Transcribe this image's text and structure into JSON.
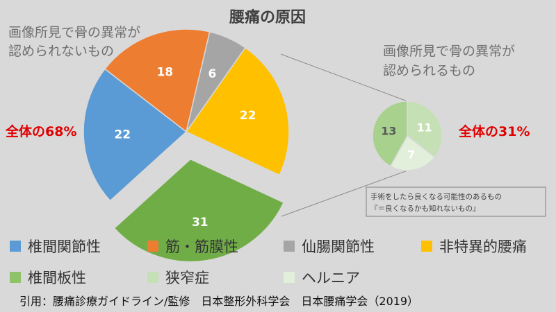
{
  "title": "腰痛の原因",
  "left_group": {
    "caption_lines": [
      "画像所見で骨の異常が",
      "認められないもの"
    ],
    "percent_label": "全体の68%"
  },
  "right_group": {
    "caption_lines": [
      "画像所見で骨の異常が",
      "認められるもの"
    ],
    "percent_label": "全体の31%"
  },
  "note": {
    "lines": [
      "手術をしたら良くなる可能性のあるもの",
      "『＝良くなるかも知れないもの』"
    ]
  },
  "legend": [
    {
      "label": "椎間関節性",
      "color": "#5b9bd5"
    },
    {
      "label": "筋・筋膜性",
      "color": "#ed7d31"
    },
    {
      "label": "仙腸関節性",
      "color": "#a5a5a5"
    },
    {
      "label": "非特異的腰痛",
      "color": "#ffc000"
    },
    {
      "label": "椎間板性",
      "color": "#8fc36a"
    },
    {
      "label": "狭窄症",
      "color": "#c5e0b4"
    },
    {
      "label": "ヘルニア",
      "color": "#e2efda"
    }
  ],
  "source": "引用：腰痛診療ガイドライン/監修　日本整形外科学会　日本腰痛学会（2019）",
  "chart_data": [
    {
      "type": "pie",
      "title": "腰痛の原因",
      "slices": [
        {
          "label": "非特異的腰痛",
          "value": 22,
          "color": "#ffc000",
          "label_color": "#ffffff"
        },
        {
          "label": "椎間板性",
          "value": 31,
          "color": "#70ad47",
          "label_color": "#ffffff",
          "exploded": true
        },
        {
          "label": "椎間関節性",
          "value": 22,
          "color": "#5b9bd5",
          "label_color": "#ffffff"
        },
        {
          "label": "筋・筋膜性",
          "value": 18,
          "color": "#ed7d31",
          "label_color": "#ffffff"
        },
        {
          "label": "仙腸関節性",
          "value": 6,
          "color": "#a5a5a5",
          "label_color": "#ffffff"
        }
      ]
    },
    {
      "type": "pie",
      "title": "",
      "slices": [
        {
          "label": "狭窄症",
          "value": 11,
          "color": "#c5e0b4",
          "label_color": "#ffffff"
        },
        {
          "label": "ヘルニア",
          "value": 7,
          "color": "#e2efda",
          "label_color": "#ffffff"
        },
        {
          "label": "椎間板性",
          "value": 13,
          "color": "#a9d18e",
          "label_color": "#595959"
        }
      ]
    }
  ]
}
